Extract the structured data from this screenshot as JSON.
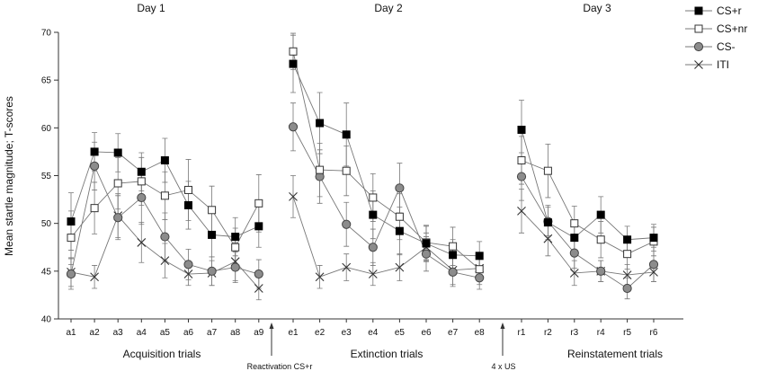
{
  "chart_data": {
    "type": "line",
    "ylabel": "Mean startle magnitude; T-scores",
    "ylim": [
      40,
      70
    ],
    "yticks": [
      40,
      45,
      50,
      55,
      60,
      65,
      70
    ],
    "days": [
      "Day 1",
      "Day 2",
      "Day 3"
    ],
    "segments": [
      {
        "name": "Acquisition trials",
        "categories": [
          "a1",
          "a2",
          "a3",
          "a4",
          "a5",
          "a6",
          "a7",
          "a8",
          "a9"
        ]
      },
      {
        "name": "Extinction trials",
        "categories": [
          "e1",
          "e2",
          "e3",
          "e4",
          "e5",
          "e6",
          "e7",
          "e8"
        ]
      },
      {
        "name": "Reinstatement trials",
        "categories": [
          "r1",
          "r2",
          "r3",
          "r4",
          "r5",
          "r6"
        ]
      }
    ],
    "annotations": [
      "Reactivation CS+r",
      "4 x US"
    ],
    "series": [
      {
        "name": "CS+r",
        "marker": "filled-square",
        "values": [
          [
            50.2,
            57.5,
            57.4,
            55.4,
            56.6,
            51.9,
            48.8,
            48.6,
            49.7
          ],
          [
            66.7,
            60.5,
            59.3,
            50.9,
            49.2,
            47.9,
            46.7,
            46.6
          ],
          [
            59.8,
            50.1,
            48.5,
            50.9,
            48.3,
            48.5
          ]
        ],
        "errors": [
          [
            3,
            2,
            2,
            2,
            2.3,
            2.5,
            2.3,
            2,
            2.2
          ],
          [
            3,
            3.2,
            3.3,
            2.5,
            2.5,
            1.8,
            1.6,
            1.5
          ],
          [
            3.1,
            1.8,
            1.8,
            1.9,
            1.4,
            1.4
          ]
        ]
      },
      {
        "name": "CS+nr",
        "marker": "open-square",
        "values": [
          [
            48.5,
            51.6,
            54.2,
            54.4,
            52.9,
            53.5,
            51.4,
            47.5,
            52.1
          ],
          [
            68,
            55.6,
            55.5,
            52.7,
            50.7,
            48,
            47.6,
            45.2
          ],
          [
            56.6,
            55.5,
            50,
            48.3,
            46.8,
            48.1
          ]
        ],
        "errors": [
          [
            2.8,
            2.7,
            2.7,
            2.5,
            2.5,
            3.2,
            2.5,
            2,
            3
          ],
          [
            1.9,
            2.8,
            2.6,
            2.5,
            2.4,
            1.8,
            2,
            1.6
          ],
          [
            2.5,
            2.8,
            1.8,
            1.9,
            1.6,
            1.5
          ]
        ]
      },
      {
        "name": "CS-",
        "marker": "filled-circle",
        "values": [
          [
            44.7,
            56,
            50.6,
            52.7,
            48.6,
            45.7,
            45,
            45.4,
            44.7
          ],
          [
            60.1,
            54.9,
            49.9,
            47.5,
            53.7,
            46.8,
            44.9,
            44.3
          ],
          [
            54.9,
            50.2,
            46.9,
            45,
            43.2,
            45.7
          ]
        ],
        "errors": [
          [
            1.6,
            2.5,
            2.3,
            2.8,
            2.5,
            1.6,
            1.5,
            1.6,
            1.5
          ],
          [
            2.5,
            2.8,
            2.3,
            1.9,
            2.6,
            1.8,
            1.5,
            1.2
          ],
          [
            2.5,
            1.5,
            1.6,
            1.1,
            1.1,
            1.8
          ]
        ]
      },
      {
        "name": "ITI",
        "marker": "cross",
        "values": [
          [
            44.9,
            44.4,
            50.8,
            48,
            46.1,
            44.7,
            44.8,
            46,
            43.2
          ],
          [
            52.8,
            44.4,
            45.4,
            44.7,
            45.4,
            47.5,
            45.1,
            45.3
          ],
          [
            51.3,
            48.4,
            44.8,
            45,
            44.6,
            44.9
          ]
        ],
        "errors": [
          [
            1.5,
            1.2,
            2.3,
            2.1,
            1.8,
            1.2,
            1.3,
            2,
            1.2
          ],
          [
            2.2,
            1.2,
            1.4,
            1.2,
            1.4,
            1.5,
            1.5,
            1.2
          ],
          [
            2.3,
            1.8,
            1.3,
            1.1,
            1.1,
            1
          ]
        ]
      }
    ]
  }
}
